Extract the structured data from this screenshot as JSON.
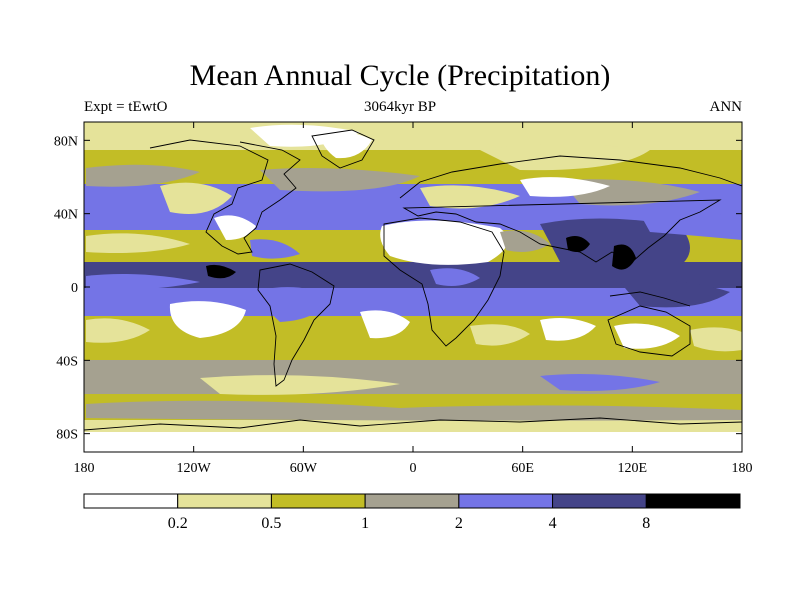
{
  "title": "Mean Annual Cycle (Precipitation)",
  "subtitle_left": "Expt = tEwtO",
  "subtitle_center": "3064kyr BP",
  "subtitle_right": "ANN",
  "colors": {
    "c0": "#ffffff",
    "c1": "#e5e39a",
    "c2": "#c2bd26",
    "c3": "#a5a190",
    "c4": "#7474e6",
    "c5": "#444488",
    "c6": "#000000"
  },
  "chart_data": {
    "type": "heatmap",
    "x_ticks": [
      "180",
      "120W",
      "60W",
      "0",
      "60E",
      "120E",
      "180"
    ],
    "y_ticks": [
      "80N",
      "40N",
      "0",
      "40S",
      "80S"
    ],
    "colorbar": {
      "labels": [
        "0.2",
        "0.5",
        "1",
        "2",
        "4",
        "8"
      ],
      "levels": [
        0.2,
        0.5,
        1,
        2,
        4,
        8
      ]
    }
  }
}
